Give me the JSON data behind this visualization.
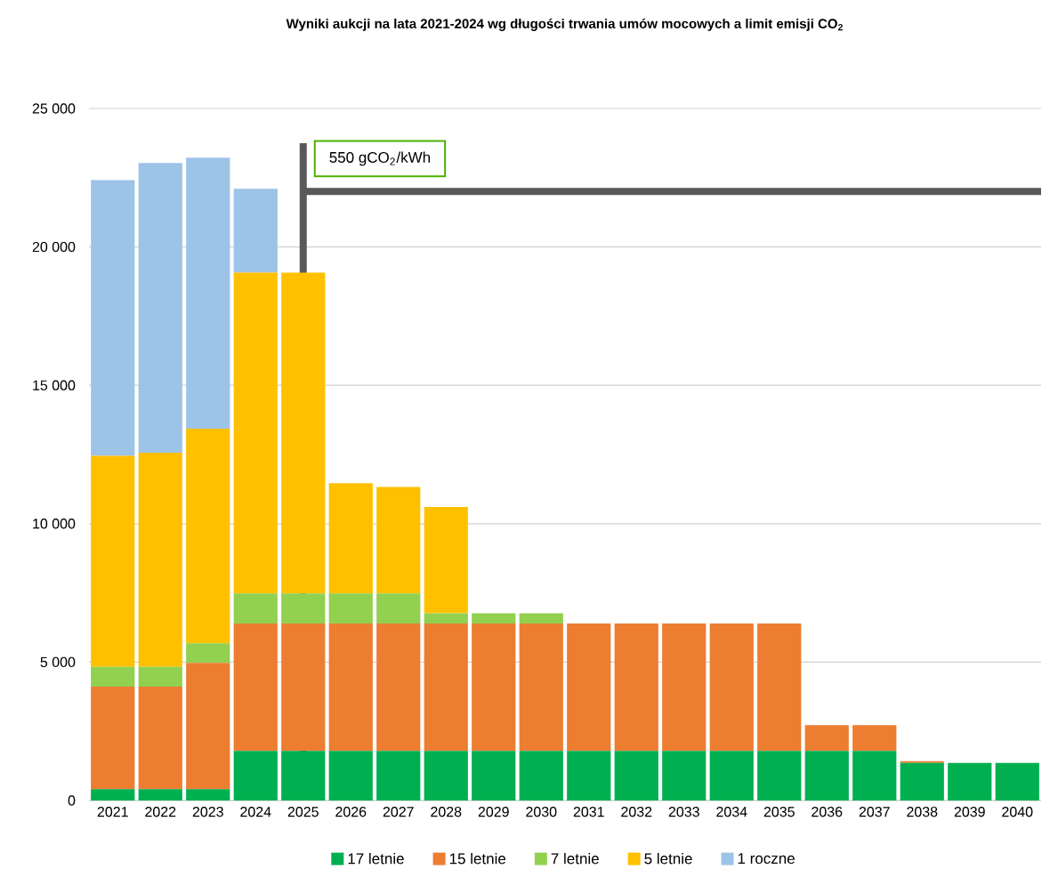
{
  "chart_data": {
    "type": "bar",
    "stacked": true,
    "title": "Wyniki aukcji na lata 2021-2024 wg długości trwania umów mocowych a limit emisji CO$_{2}$",
    "categories": [
      "2021",
      "2022",
      "2023",
      "2024",
      "2025",
      "2026",
      "2027",
      "2028",
      "2029",
      "2030",
      "2031",
      "2032",
      "2033",
      "2034",
      "2035",
      "2036",
      "2037",
      "2038",
      "2039",
      "2040"
    ],
    "series": [
      {
        "name": "17 letnie",
        "color": "#00b050",
        "values": [
          410,
          410,
          410,
          1790,
          1790,
          1790,
          1790,
          1790,
          1790,
          1790,
          1790,
          1790,
          1790,
          1790,
          1790,
          1790,
          1790,
          1360,
          1360,
          1360
        ]
      },
      {
        "name": "15 letnie",
        "color": "#ed7d31",
        "values": [
          3700,
          3700,
          4560,
          4600,
          4600,
          4600,
          4600,
          4600,
          4600,
          4600,
          4600,
          4600,
          4600,
          4600,
          4600,
          930,
          930,
          60,
          null,
          null
        ]
      },
      {
        "name": "7 letnie",
        "color": "#92d050",
        "values": [
          720,
          720,
          710,
          1090,
          1090,
          1090,
          1090,
          370,
          370,
          370,
          null,
          null,
          null,
          null,
          null,
          null,
          null,
          null,
          null,
          null
        ]
      },
      {
        "name": "5 letnie",
        "color": "#ffc000",
        "values": [
          7620,
          7730,
          7750,
          11590,
          11590,
          3980,
          3850,
          3840,
          null,
          null,
          null,
          null,
          null,
          null,
          null,
          null,
          null,
          null,
          null,
          null
        ]
      },
      {
        "name": "1 roczne",
        "color": "#9dc3e6",
        "values": [
          9960,
          10470,
          9790,
          3030,
          null,
          null,
          null,
          null,
          null,
          null,
          null,
          null,
          null,
          null,
          null,
          null,
          null,
          null,
          null,
          null
        ]
      }
    ],
    "ylim": [
      0,
      25000
    ],
    "yticks": [
      {
        "value": 0,
        "label": "0"
      },
      {
        "value": 5000,
        "label": "5 000"
      },
      {
        "value": 10000,
        "label": "10 000"
      },
      {
        "value": 15000,
        "label": "15 000"
      },
      {
        "value": 20000,
        "label": "20 000"
      },
      {
        "value": 25000,
        "label": "25 000"
      }
    ],
    "grid": "y",
    "legend": "bottom",
    "ref_lines": [
      {
        "axis": "x",
        "value": "2025",
        "color": "#595959"
      },
      {
        "axis": "y",
        "value": 22000,
        "label": "550 gCO$_{2}$/kWh",
        "color": "#595959"
      }
    ]
  }
}
